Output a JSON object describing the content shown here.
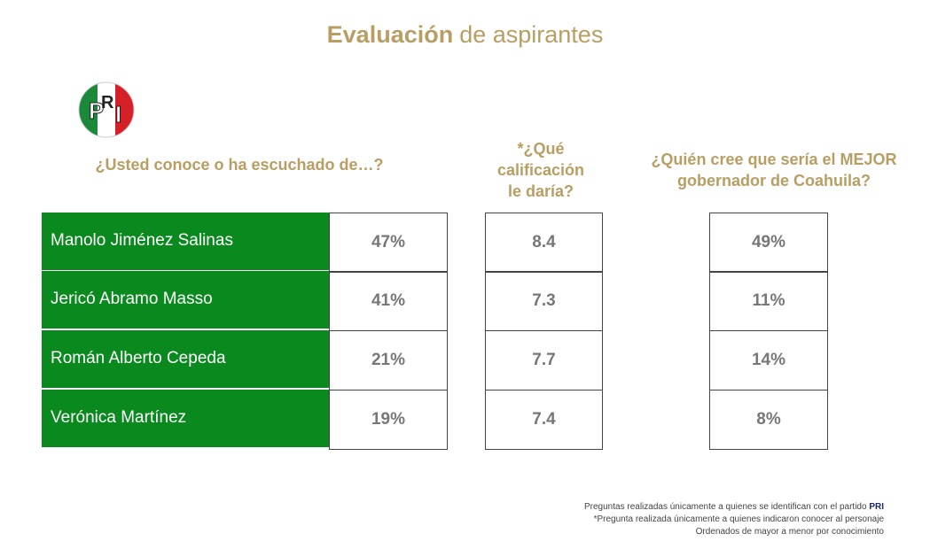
{
  "header": {
    "title_bold": "Evaluación",
    "title_rest": "de aspirantes",
    "logo": [
      "P",
      "R",
      "I"
    ]
  },
  "questions": {
    "known": "¿Usted conoce o ha escuchado de…?",
    "grade": [
      "*¿Qué",
      "calificación",
      "le daría?"
    ],
    "best": [
      "¿Quién cree que sería el MEJOR",
      "gobernador de Coahuila?"
    ]
  },
  "table": {
    "rows": [
      [
        "Manolo Jiménez Salinas",
        "47%",
        "8.4",
        "49%"
      ],
      [
        "Jericó Abramo Masso",
        "41%",
        "7.3",
        "11%"
      ],
      [
        "Román Alberto Cepeda",
        "21%",
        "7.7",
        "14%"
      ],
      [
        "Verónica Martínez",
        "19%",
        "7.4",
        "8%"
      ]
    ]
  },
  "footnotes": {
    "line1": "Preguntas realizadas únicamente a quienes se identifican con el partido",
    "line1_bold": "PRI",
    "line2": "*Pregunta realizada únicamente a quienes indicaron conocer al personaje",
    "line3": "Ordenados de mayor a menor por conocimiento"
  }
}
